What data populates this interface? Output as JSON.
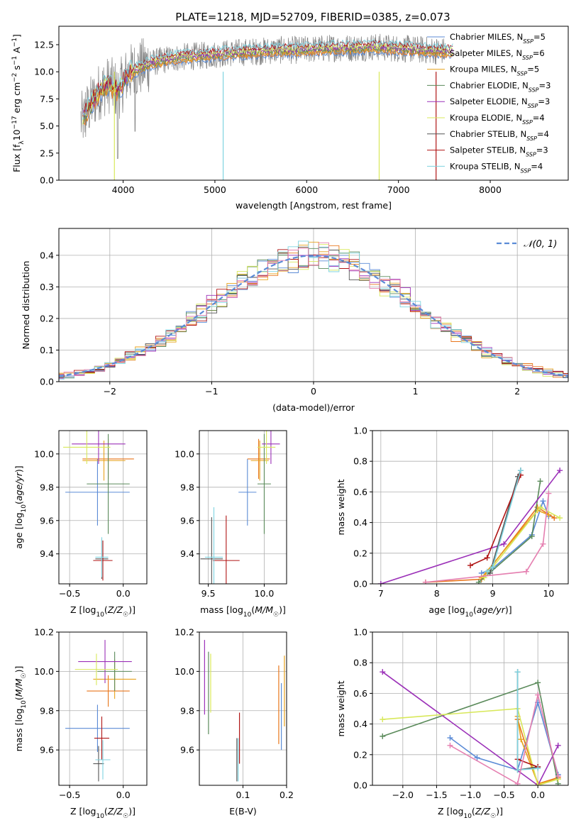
{
  "figure_title": "PLATE=1218, MJD=52709, FIBERID=0385, z=0.073",
  "colors": {
    "Chabrier MILES": "#5b8bd6",
    "Salpeter MILES": "#e8761c",
    "Kroupa MILES": "#e8a21c",
    "Chabrier ELODIE": "#5a8a5a",
    "Salpeter ELODIE": "#9b30b8",
    "Kroupa ELODIE": "#d8e85a",
    "Chabrier STELIB": "#555555",
    "Salpeter STELIB": "#b01515",
    "Kroupa STELIB": "#7fd3e0"
  },
  "chart_data": [
    {
      "id": "spectrum",
      "type": "line",
      "title": "PLATE=1218, MJD=52709, FIBERID=0385, z=0.073",
      "xlabel": "wavelength [Angstrom, rest frame]",
      "ylabel": "Flux [f_λ10^-17 erg cm^-2 s^-1 A^-1]",
      "xlim": [
        3300,
        8850
      ],
      "ylim": [
        0,
        14.2
      ],
      "xticks": [
        4000,
        5000,
        6000,
        7000,
        8000
      ],
      "yticks": [
        0.0,
        2.5,
        5.0,
        7.5,
        10.0,
        12.5
      ],
      "ytick_labels": [
        "0.0",
        "2.5",
        "5.0",
        "7.5",
        "10.0",
        "12.5"
      ],
      "legend_placement": "right",
      "legend": [
        {
          "label": "Chabrier MILES, N_SSP=5",
          "main": "Chabrier MILES, N",
          "sub": "SSP",
          "tail": "=5",
          "color": "#5b8bd6"
        },
        {
          "label": "Salpeter MILES, N_SSP=6",
          "main": "Salpeter MILES, N",
          "sub": "SSP",
          "tail": "=6",
          "color": "#e8761c"
        },
        {
          "label": "Kroupa MILES, N_SSP=5",
          "main": "Kroupa MILES, N",
          "sub": "SSP",
          "tail": "=5",
          "color": "#e8a21c"
        },
        {
          "label": "Chabrier ELODIE, N_SSP=3",
          "main": "Chabrier ELODIE, N",
          "sub": "SSP",
          "tail": "=3",
          "color": "#5a8a5a"
        },
        {
          "label": "Salpeter ELODIE, N_SSP=3",
          "main": "Salpeter ELODIE, N",
          "sub": "SSP",
          "tail": "=3",
          "color": "#9b30b8"
        },
        {
          "label": "Kroupa ELODIE, N_SSP=4",
          "main": "Kroupa ELODIE, N",
          "sub": "SSP",
          "tail": "=4",
          "color": "#d8e85a"
        },
        {
          "label": "Chabrier STELIB, N_SSP=4",
          "main": "Chabrier STELIB, N",
          "sub": "SSP",
          "tail": "=4",
          "color": "#555555"
        },
        {
          "label": "Salpeter STELIB, N_SSP=3",
          "main": "Salpeter STELIB, N",
          "sub": "SSP",
          "tail": "=3",
          "color": "#b01515"
        },
        {
          "label": "Kroupa STELIB, N_SSP=4",
          "main": "Kroupa STELIB, N",
          "sub": "SSP",
          "tail": "=4",
          "color": "#7fd3e0"
        }
      ],
      "series_envelope": {
        "x": [
          3550,
          3650,
          3750,
          3850,
          3950,
          4050,
          4150,
          4300,
          4500,
          4700,
          4900,
          5100,
          5300,
          5500,
          5700,
          5900,
          6100,
          6300,
          6500,
          6700,
          6900,
          7100,
          7300,
          7500
        ],
        "y": [
          5.5,
          7.0,
          8.3,
          8.8,
          8.2,
          9.8,
          10.2,
          10.8,
          11.2,
          11.4,
          11.5,
          11.7,
          11.8,
          11.9,
          12.0,
          12.0,
          12.1,
          12.2,
          12.2,
          12.3,
          12.2,
          12.1,
          12.0,
          11.9
        ]
      }
    },
    {
      "id": "residuals",
      "type": "line",
      "xlabel": "(data-model)/error",
      "ylabel": "Normed distribution",
      "xlim": [
        -2.5,
        2.5
      ],
      "ylim": [
        0,
        0.485
      ],
      "xticks": [
        -2,
        -1,
        0,
        1,
        2
      ],
      "xtick_labels": [
        "−2",
        "−1",
        "0",
        "1",
        "2"
      ],
      "yticks": [
        0.0,
        0.1,
        0.2,
        0.3,
        0.4
      ],
      "ytick_labels": [
        "0.0",
        "0.1",
        "0.2",
        "0.3",
        "0.4"
      ],
      "grid": true,
      "legend_placement": "top-right",
      "legend_label": "𝒩(0, 1)",
      "reference_curve": "N(0,1)",
      "histogram_bin_width": 0.1
    },
    {
      "id": "age-vs-Z",
      "type": "scatter",
      "xlabel": "Z [log10(Z/Z☉)]",
      "ylabel": "age [log10(age/yr)]",
      "xlim": [
        -0.6,
        0.22
      ],
      "ylim": [
        9.22,
        10.14
      ],
      "xticks": [
        -0.5,
        0.0
      ],
      "xtick_labels": [
        "−0.5",
        "0.0"
      ],
      "yticks": [
        9.4,
        9.6,
        9.8,
        10.0
      ],
      "ytick_labels": [
        "9.4",
        "9.6",
        "9.8",
        "10.0"
      ],
      "grid": true,
      "points": [
        {
          "model": "Chabrier MILES",
          "x": -0.24,
          "xerr": 0.3,
          "y": 9.77,
          "yerr": 0.2
        },
        {
          "model": "Salpeter MILES",
          "x": -0.14,
          "xerr": 0.24,
          "y": 9.97,
          "yerr": 0.12
        },
        {
          "model": "Kroupa MILES",
          "x": -0.18,
          "xerr": 0.2,
          "y": 9.96,
          "yerr": 0.12
        },
        {
          "model": "Chabrier ELODIE",
          "x": -0.14,
          "xerr": 0.2,
          "y": 9.82,
          "yerr": 0.3
        },
        {
          "model": "Salpeter ELODIE",
          "x": -0.23,
          "xerr": 0.25,
          "y": 10.06,
          "yerr": 0.12
        },
        {
          "model": "Kroupa ELODIE",
          "x": -0.34,
          "xerr": 0.22,
          "y": 10.04,
          "yerr": 0.1
        },
        {
          "model": "Chabrier STELIB",
          "x": -0.2,
          "xerr": 0.06,
          "y": 9.37,
          "yerr": 0.12
        },
        {
          "model": "Salpeter STELIB",
          "x": -0.19,
          "xerr": 0.09,
          "y": 9.36,
          "yerr": 0.12
        },
        {
          "model": "Kroupa STELIB",
          "x": -0.2,
          "xerr": 0.06,
          "y": 9.38,
          "yerr": 0.12
        }
      ]
    },
    {
      "id": "age-vs-mass",
      "type": "scatter",
      "xlabel": "mass [log10(M/M☉)]",
      "xlim": [
        9.42,
        10.2
      ],
      "ylim": [
        9.22,
        10.14
      ],
      "xticks": [
        9.5,
        10.0
      ],
      "xtick_labels": [
        "9.5",
        "10.0"
      ],
      "yticks": [
        9.4,
        9.6,
        9.8,
        10.0
      ],
      "ytick_labels": [
        "9.4",
        "9.6",
        "9.8",
        "10.0"
      ],
      "grid": true,
      "points": [
        {
          "model": "Chabrier MILES",
          "x": 9.85,
          "xerr": 0.08,
          "y": 9.77,
          "yerr": 0.2
        },
        {
          "model": "Salpeter MILES",
          "x": 9.95,
          "xerr": 0.1,
          "y": 9.97,
          "yerr": 0.12
        },
        {
          "model": "Kroupa MILES",
          "x": 9.96,
          "xerr": 0.08,
          "y": 9.96,
          "yerr": 0.12
        },
        {
          "model": "Chabrier ELODIE",
          "x": 10.0,
          "xerr": 0.06,
          "y": 9.82,
          "yerr": 0.3
        },
        {
          "model": "Salpeter ELODIE",
          "x": 10.06,
          "xerr": 0.08,
          "y": 10.06,
          "yerr": 0.12
        },
        {
          "model": "Kroupa ELODIE",
          "x": 10.02,
          "xerr": 0.08,
          "y": 10.04,
          "yerr": 0.1
        },
        {
          "model": "Chabrier STELIB",
          "x": 9.53,
          "xerr": 0.1,
          "y": 9.37,
          "yerr": 0.25
        },
        {
          "model": "Salpeter STELIB",
          "x": 9.66,
          "xerr": 0.12,
          "y": 9.36,
          "yerr": 0.27
        },
        {
          "model": "Kroupa STELIB",
          "x": 9.55,
          "xerr": 0.08,
          "y": 9.38,
          "yerr": 0.3
        }
      ]
    },
    {
      "id": "mass-weight-vs-age",
      "type": "line",
      "xlabel": "age [log10(age/yr)]",
      "ylabel": "mass weight",
      "xlim": [
        6.85,
        10.35
      ],
      "ylim": [
        0,
        1.0
      ],
      "xticks": [
        7,
        8,
        9,
        10
      ],
      "xtick_labels": [
        "7",
        "8",
        "9",
        "10"
      ],
      "yticks": [
        0.0,
        0.2,
        0.4,
        0.6,
        0.8,
        1.0
      ],
      "ytick_labels": [
        "0.0",
        "0.2",
        "0.4",
        "0.6",
        "0.8",
        "1.0"
      ],
      "grid": true,
      "series": [
        {
          "model": "Chabrier MILES",
          "x": [
            8.8,
            9.0,
            9.7,
            9.9,
            10.0
          ],
          "y": [
            0.07,
            0.1,
            0.32,
            0.54,
            0.44
          ]
        },
        {
          "model": "Salpeter MILES",
          "x": [
            7.8,
            8.8,
            9.8,
            10.1
          ],
          "y": [
            0.01,
            0.03,
            0.5,
            0.43
          ]
        },
        {
          "model": "Kroupa MILES",
          "x": [
            8.8,
            9.8,
            10.0
          ],
          "y": [
            0.04,
            0.48,
            0.45
          ]
        },
        {
          "model": "Chabrier ELODIE",
          "x": [
            8.75,
            9.7,
            9.85
          ],
          "y": [
            0.01,
            0.31,
            0.67
          ]
        },
        {
          "model": "Salpeter ELODIE",
          "x": [
            7.0,
            9.2,
            10.2
          ],
          "y": [
            0.0,
            0.26,
            0.74
          ]
        },
        {
          "model": "Kroupa ELODIE",
          "x": [
            8.85,
            9.85,
            10.2
          ],
          "y": [
            0.04,
            0.5,
            0.43
          ]
        },
        {
          "model": "Chabrier STELIB",
          "x": [
            8.95,
            9.45,
            9.5
          ],
          "y": [
            0.07,
            0.7,
            0.74
          ]
        },
        {
          "model": "Salpeter STELIB",
          "x": [
            8.6,
            8.9,
            9.5
          ],
          "y": [
            0.12,
            0.17,
            0.71
          ]
        },
        {
          "model": "Kroupa STELIB",
          "x": [
            8.9,
            9.0,
            9.5
          ],
          "y": [
            0.08,
            0.11,
            0.74
          ]
        },
        {
          "model": "Kroupa MILES pink",
          "x": [
            7.8,
            9.6,
            9.9,
            10.0
          ],
          "y": [
            0.01,
            0.08,
            0.26,
            0.59
          ]
        }
      ]
    },
    {
      "id": "mass-vs-Z",
      "type": "scatter",
      "xlabel": "Z [log10(Z/Z☉)]",
      "ylabel": "mass [log10(M/M☉)]",
      "xlim": [
        -0.6,
        0.22
      ],
      "ylim": [
        9.42,
        10.2
      ],
      "xticks": [
        -0.5,
        0.0
      ],
      "xtick_labels": [
        "−0.5",
        "0.0"
      ],
      "yticks": [
        9.6,
        9.8,
        10.0,
        10.2
      ],
      "ytick_labels": [
        "9.6",
        "9.8",
        "10.0",
        "10.2"
      ],
      "grid": true,
      "points": [
        {
          "model": "Chabrier MILES",
          "x": -0.24,
          "xerr": 0.3,
          "y": 9.71,
          "yerr": 0.12
        },
        {
          "model": "Salpeter MILES",
          "x": -0.14,
          "xerr": 0.2,
          "y": 9.9,
          "yerr": 0.08
        },
        {
          "model": "Kroupa MILES",
          "x": -0.08,
          "xerr": 0.2,
          "y": 9.96,
          "yerr": 0.1
        },
        {
          "model": "Chabrier ELODIE",
          "x": -0.08,
          "xerr": 0.16,
          "y": 10.0,
          "yerr": 0.1
        },
        {
          "model": "Salpeter ELODIE",
          "x": -0.17,
          "xerr": 0.25,
          "y": 10.05,
          "yerr": 0.11
        },
        {
          "model": "Kroupa ELODIE",
          "x": -0.25,
          "xerr": 0.2,
          "y": 10.01,
          "yerr": 0.08
        },
        {
          "model": "Chabrier STELIB",
          "x": -0.23,
          "xerr": 0.05,
          "y": 9.53,
          "yerr": 0.09
        },
        {
          "model": "Salpeter STELIB",
          "x": -0.2,
          "xerr": 0.07,
          "y": 9.66,
          "yerr": 0.11
        },
        {
          "model": "Kroupa STELIB",
          "x": -0.19,
          "xerr": 0.07,
          "y": 9.55,
          "yerr": 0.1
        }
      ]
    },
    {
      "id": "mass-vs-ebv",
      "type": "scatter",
      "xlabel": "E(B-V)",
      "xlim": [
        0.0,
        0.2
      ],
      "ylim": [
        9.42,
        10.2
      ],
      "xticks": [
        0.1,
        0.2
      ],
      "xtick_labels": [
        "0.1",
        "0.2"
      ],
      "yticks": [
        9.6,
        9.8,
        10.0,
        10.2
      ],
      "ytick_labels": [
        "9.6",
        "9.8",
        "10.0",
        "10.2"
      ],
      "grid": true,
      "points": [
        {
          "model": "Salpeter ELODIE",
          "x": 0.012,
          "y": 9.97,
          "yerr": 0.19
        },
        {
          "model": "Chabrier ELODIE",
          "x": 0.021,
          "y": 9.89,
          "yerr": 0.21
        },
        {
          "model": "Kroupa ELODIE",
          "x": 0.026,
          "y": 9.94,
          "yerr": 0.15
        },
        {
          "model": "Chabrier STELIB",
          "x": 0.086,
          "y": 9.55,
          "yerr": 0.11
        },
        {
          "model": "Salpeter STELIB",
          "x": 0.092,
          "y": 9.66,
          "yerr": 0.13
        },
        {
          "model": "Kroupa STELIB",
          "x": 0.089,
          "y": 9.55,
          "yerr": 0.11
        },
        {
          "model": "Salpeter MILES",
          "x": 0.182,
          "y": 9.83,
          "yerr": 0.2
        },
        {
          "model": "Chabrier MILES",
          "x": 0.188,
          "y": 9.77,
          "yerr": 0.17
        },
        {
          "model": "Kroupa MILES",
          "x": 0.195,
          "y": 9.9,
          "yerr": 0.18
        }
      ]
    },
    {
      "id": "mass-weight-vs-Z",
      "type": "line",
      "xlabel": "Z [log10(Z/Z☉)]",
      "ylabel": "mass weight",
      "xlim": [
        -2.45,
        0.45
      ],
      "ylim": [
        0,
        1.0
      ],
      "xticks": [
        -2.0,
        -1.5,
        -1.0,
        -0.5,
        0.0
      ],
      "xtick_labels": [
        "−2.0",
        "−1.5",
        "−1.0",
        "−0.5",
        "0.0"
      ],
      "yticks": [
        0.0,
        0.2,
        0.4,
        0.6,
        0.8,
        1.0
      ],
      "ytick_labels": [
        "0.0",
        "0.2",
        "0.4",
        "0.6",
        "0.8",
        "1.0"
      ],
      "grid": true,
      "series": [
        {
          "model": "Chabrier MILES",
          "x": [
            -1.3,
            -0.9,
            -0.3,
            0.0,
            0.3
          ],
          "y": [
            0.31,
            0.18,
            0.1,
            0.54,
            0.07
          ]
        },
        {
          "model": "Salpeter MILES",
          "x": [
            -0.3,
            0.0,
            0.3
          ],
          "y": [
            0.43,
            0.01,
            0.05
          ]
        },
        {
          "model": "Kroupa MILES",
          "x": [
            -0.3,
            -0.25,
            0.0,
            0.3
          ],
          "y": [
            0.45,
            0.3,
            0.01,
            0.04
          ]
        },
        {
          "model": "Chabrier ELODIE",
          "x": [
            -2.3,
            0.0,
            0.3
          ],
          "y": [
            0.32,
            0.67,
            0.01
          ]
        },
        {
          "model": "Salpeter ELODIE",
          "x": [
            -2.3,
            0.0,
            0.3
          ],
          "y": [
            0.74,
            0.0,
            0.26
          ]
        },
        {
          "model": "Kroupa ELODIE",
          "x": [
            -2.3,
            -0.3,
            0.0,
            0.3
          ],
          "y": [
            0.43,
            0.5,
            0.0,
            0.04
          ]
        },
        {
          "model": "Chabrier STELIB",
          "x": [
            -0.3,
            -0.3,
            0.0
          ],
          "y": [
            0.74,
            0.1,
            0.12
          ]
        },
        {
          "model": "Salpeter STELIB",
          "x": [
            -0.3,
            0.0
          ],
          "y": [
            0.17,
            0.12
          ]
        },
        {
          "model": "Kroupa STELIB",
          "x": [
            -0.3,
            -0.3,
            0.0
          ],
          "y": [
            0.74,
            0.1,
            0.11
          ]
        },
        {
          "model": "Kroupa MILES pink",
          "x": [
            -1.3,
            -0.3,
            0.0,
            0.3
          ],
          "y": [
            0.26,
            0.01,
            0.59,
            0.06
          ]
        }
      ]
    }
  ]
}
